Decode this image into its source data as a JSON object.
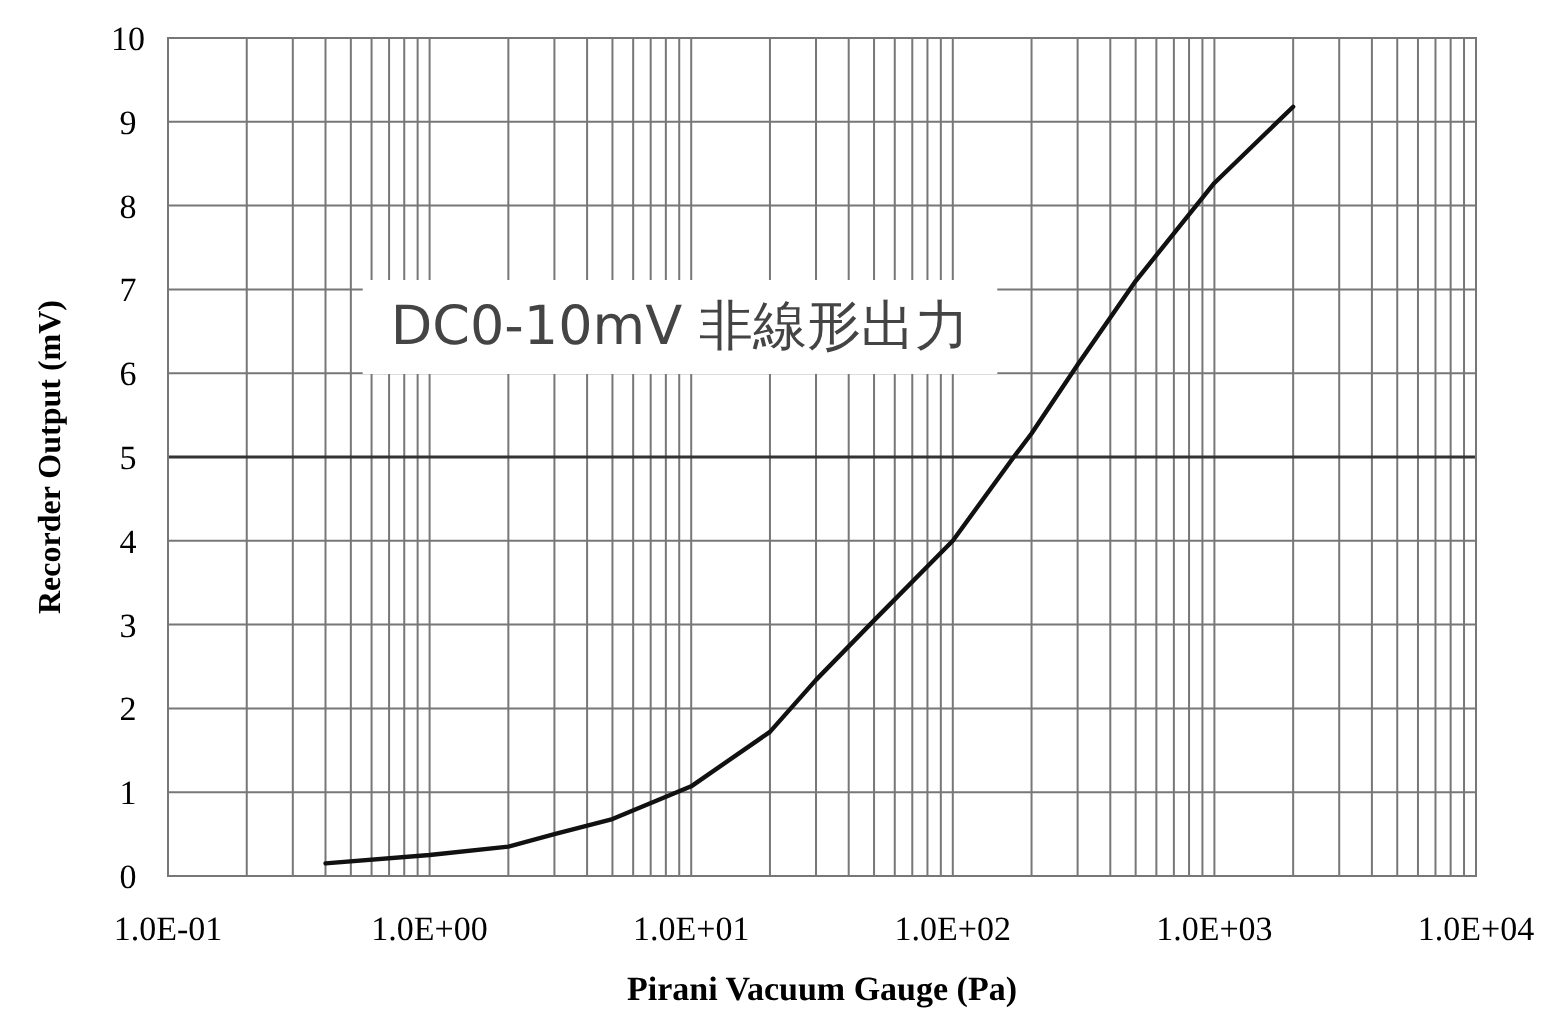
{
  "chart_data": {
    "type": "line",
    "xlabel": "Pirani Vacuum Gauge (Pa)",
    "ylabel": "Recorder Output (mV)",
    "annotations": [
      "DC0-10mV 非線形出力"
    ],
    "log": "x",
    "grid": true,
    "marker": "none",
    "line_style": "solid",
    "xlim": [
      0.1,
      10000
    ],
    "ylim": [
      0,
      10
    ],
    "xticks": [
      {
        "value": 0.1,
        "label": "1.0E-01"
      },
      {
        "value": 1,
        "label": "1.0E+00"
      },
      {
        "value": 10,
        "label": "1.0E+01"
      },
      {
        "value": 100,
        "label": "1.0E+02"
      },
      {
        "value": 1000,
        "label": "1.0E+03"
      },
      {
        "value": 10000,
        "label": "1.0E+04"
      }
    ],
    "yticks": [
      0,
      1,
      2,
      3,
      4,
      5,
      6,
      7,
      8,
      9,
      10
    ],
    "ref_lines": [
      {
        "axis": "y",
        "value": 5,
        "color": "#333333"
      }
    ],
    "series": [
      {
        "color": "#111111",
        "x": [
          0.4,
          1,
          2,
          3,
          5,
          10,
          20,
          30,
          50,
          100,
          171,
          200,
          300,
          500,
          1000,
          2000
        ],
        "values": [
          0.15,
          0.25,
          0.35,
          0.5,
          0.68,
          1.07,
          1.72,
          2.34,
          3.05,
          4.0,
          5.0,
          5.28,
          6.1,
          7.1,
          8.27,
          9.18
        ]
      }
    ]
  }
}
